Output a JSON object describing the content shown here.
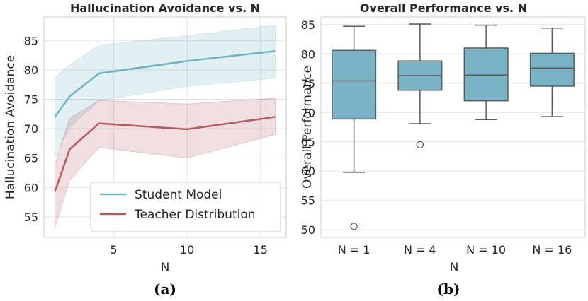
{
  "chart_data": [
    {
      "type": "line",
      "title": "Hallucination Avoidance vs. N",
      "xlabel": "N",
      "ylabel": "Hallucination Avoidance",
      "xlim": [
        0.25,
        16.75
      ],
      "ylim": [
        51.5,
        89
      ],
      "xticks": [
        5,
        10,
        15
      ],
      "yticks": [
        55,
        60,
        65,
        70,
        75,
        80,
        85
      ],
      "grid": true,
      "legend_position": "bottom-right",
      "series": [
        {
          "name": "Student Model",
          "color": "#6db2c8",
          "x": [
            1,
            2,
            4,
            10,
            16
          ],
          "y": [
            72.0,
            75.5,
            79.4,
            81.5,
            83.2
          ],
          "band_low": [
            65.2,
            70.2,
            74.8,
            77.2,
            78.6
          ],
          "band_high": [
            78.6,
            80.8,
            84.2,
            85.8,
            87.6
          ]
        },
        {
          "name": "Teacher Distribution",
          "color": "#b55a62",
          "x": [
            1,
            2,
            4,
            10,
            16
          ],
          "y": [
            59.3,
            66.5,
            70.9,
            69.9,
            72.0
          ],
          "band_low": [
            53.2,
            61.2,
            66.8,
            65.0,
            69.0
          ],
          "band_high": [
            64.0,
            71.8,
            74.8,
            74.2,
            75.2
          ]
        }
      ],
      "caption": "(a)"
    },
    {
      "type": "box",
      "title": "Overall Performance vs. N",
      "xlabel": "N",
      "ylabel": "Overall Performance",
      "ylim": [
        48.7,
        86.3
      ],
      "yticks": [
        50,
        55,
        60,
        65,
        70,
        75,
        80,
        85
      ],
      "grid": true,
      "color": "#7ab3c6",
      "categories": [
        "N = 1",
        "N = 4",
        "N = 10",
        "N = 16"
      ],
      "boxes": [
        {
          "whisker_low": 59.8,
          "q1": 68.9,
          "median": 75.4,
          "q3": 80.6,
          "whisker_high": 84.7,
          "outliers": [
            50.6
          ]
        },
        {
          "whisker_low": 68.1,
          "q1": 73.8,
          "median": 76.3,
          "q3": 78.8,
          "whisker_high": 85.1,
          "outliers": [
            64.5
          ]
        },
        {
          "whisker_low": 68.8,
          "q1": 72.0,
          "median": 76.4,
          "q3": 81.0,
          "whisker_high": 84.9,
          "outliers": []
        },
        {
          "whisker_low": 69.3,
          "q1": 74.5,
          "median": 77.6,
          "q3": 80.1,
          "whisker_high": 84.4,
          "outliers": []
        }
      ],
      "caption": "(b)"
    }
  ]
}
